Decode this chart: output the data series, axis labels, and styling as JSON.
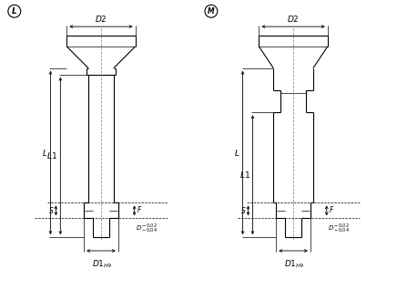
{
  "bg_color": "#ffffff",
  "line_color": "#000000",
  "lw": 0.8,
  "tlw": 0.5,
  "label_L_circ": "L",
  "label_M_circ": "M"
}
